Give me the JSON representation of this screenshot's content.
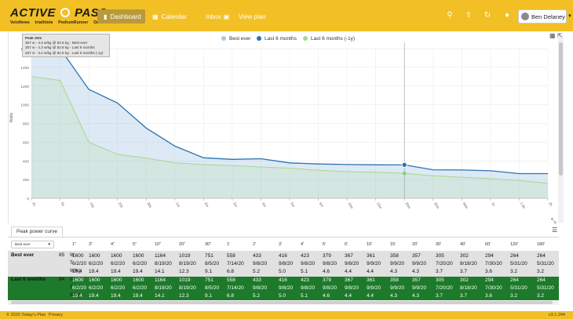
{
  "header": {
    "logo": {
      "left": "ACTIVE",
      "right": "PASS",
      "partners": [
        "VeloNews",
        "triathlete",
        "PodiumRunner",
        "Outside"
      ]
    },
    "nav": [
      {
        "label": "Dashboard",
        "icon": "chart-icon",
        "active": true
      },
      {
        "label": "Calendar",
        "icon": "calendar-icon",
        "active": false
      },
      {
        "label": "Inbox",
        "icon": "chat-icon",
        "active": false
      },
      {
        "label": "View plan",
        "icon": "",
        "active": false
      }
    ],
    "user": {
      "name": "Ben Delaney"
    },
    "icons": [
      "search-icon",
      "upload-icon",
      "sync-icon",
      "help-icon"
    ],
    "accent": "#f2c025"
  },
  "chart_data": {
    "type": "line",
    "ylabel": "Watts",
    "xlabel": "",
    "ylim": [
      0,
      1600
    ],
    "y_ticks": [
      0,
      200,
      400,
      600,
      800,
      1000,
      1200,
      1400,
      1600
    ],
    "x": [
      "2s",
      "5s",
      "10s",
      "20s",
      "30s",
      "1m",
      "2m",
      "3m",
      "4m",
      "5m",
      "6m",
      "10m",
      "15m",
      "20m",
      "30m",
      "40m",
      "1h",
      "1.5h",
      "2h"
    ],
    "grid": true,
    "legend_position": "top",
    "series": [
      {
        "name": "Best ever",
        "color": "#a9c9e5",
        "style": "area",
        "values": [
          1600,
          1600,
          1164,
          1019,
          751,
          558,
          433,
          416,
          423,
          379,
          367,
          361,
          358,
          357,
          305,
          302,
          294,
          264,
          264
        ]
      },
      {
        "name": "Last 6 months",
        "color": "#2b74b0",
        "style": "line",
        "values": [
          1600,
          1600,
          1164,
          1019,
          751,
          558,
          433,
          416,
          423,
          379,
          367,
          361,
          358,
          357,
          305,
          302,
          294,
          264,
          264
        ]
      },
      {
        "name": "Last 6 months (-1y)",
        "color": "#a6d98a",
        "style": "line",
        "values": [
          1300,
          1260,
          600,
          470,
          430,
          380,
          360,
          350,
          335,
          322,
          300,
          285,
          278,
          267,
          240,
          225,
          210,
          190,
          160
        ]
      }
    ]
  },
  "tooltip": {
    "title": "Peak 20m",
    "lines": [
      "357 w - 4.3 w/kg @ 82.6 kg - Best ever",
      "357 w - 4.3 w/kg @ 82.6 kg - Last 6 months",
      "267 w - 3.2 w/kg @ 82.6 kg - Last 6 months (-1y)"
    ]
  },
  "table": {
    "title": "Peak power curve",
    "select": "Best ever",
    "columns": [
      "1\"",
      "3\"",
      "4\"",
      "5\"",
      "10\"",
      "20\"",
      "30\"",
      "1'",
      "2'",
      "3'",
      "4'",
      "5'",
      "6'",
      "10'",
      "15'",
      "20'",
      "30'",
      "40'",
      "60'",
      "120'",
      "180'"
    ],
    "rows": [
      {
        "name": "Best ever",
        "count": "85",
        "band": "grey",
        "W": [
          "1600",
          "1600",
          "1600",
          "1600",
          "1164",
          "1019",
          "751",
          "558",
          "433",
          "416",
          "423",
          "379",
          "367",
          "361",
          "358",
          "357",
          "305",
          "302",
          "294",
          "264",
          "264"
        ],
        "T": [
          "6/2/20",
          "6/2/20",
          "6/2/20",
          "6/2/20",
          "8/19/20",
          "8/19/20",
          "8/5/20",
          "7/14/20",
          "9/8/20",
          "9/8/20",
          "9/8/20",
          "9/8/20",
          "9/8/20",
          "9/9/20",
          "9/9/20",
          "9/9/20",
          "7/20/20",
          "8/18/20",
          "7/30/20",
          "5/31/20",
          "5/31/20"
        ],
        "Wkg": [
          "19.4",
          "19.4",
          "19.4",
          "19.4",
          "14.1",
          "12.3",
          "9.1",
          "6.8",
          "5.2",
          "5.0",
          "5.1",
          "4.6",
          "4.4",
          "4.4",
          "4.3",
          "4.3",
          "3.7",
          "3.7",
          "3.6",
          "3.2",
          "3.2"
        ]
      },
      {
        "name": "Last 6 months",
        "count": "84",
        "band": "green",
        "W": [
          "1600",
          "1600",
          "1600",
          "1600",
          "1164",
          "1019",
          "751",
          "558",
          "433",
          "416",
          "423",
          "379",
          "367",
          "361",
          "358",
          "357",
          "305",
          "302",
          "294",
          "264",
          "264"
        ],
        "T": [
          "6/2/20",
          "6/2/20",
          "6/2/20",
          "6/2/20",
          "8/19/20",
          "8/19/20",
          "8/5/20",
          "7/14/20",
          "9/8/20",
          "9/8/20",
          "9/8/20",
          "9/8/20",
          "9/8/20",
          "9/9/20",
          "9/9/20",
          "9/9/20",
          "7/20/20",
          "8/18/20",
          "7/30/20",
          "5/31/20",
          "5/31/20"
        ],
        "Wkg": [
          "19.4",
          "19.4",
          "19.4",
          "19.4",
          "14.1",
          "12.3",
          "9.1",
          "6.8",
          "5.2",
          "5.0",
          "5.1",
          "4.6",
          "4.4",
          "4.4",
          "4.3",
          "4.3",
          "3.7",
          "3.7",
          "3.6",
          "3.2",
          "3.2"
        ]
      }
    ],
    "units": [
      "W",
      "T",
      "W/kg"
    ]
  },
  "footer": {
    "copyright": "© 2020 Today's Plan",
    "privacy": "Privacy",
    "version": "v3.1.244"
  }
}
